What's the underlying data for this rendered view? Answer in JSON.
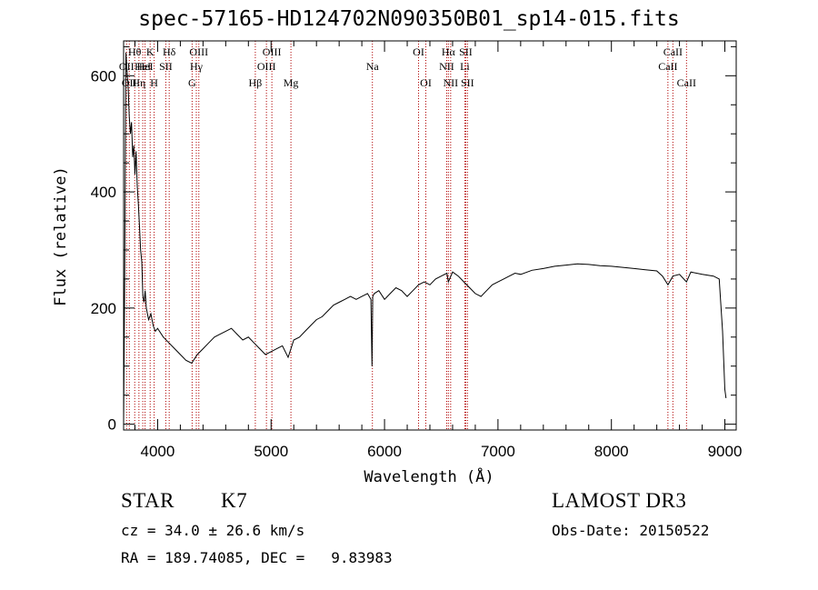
{
  "title": "spec-57165-HD124702N090350B01_sp14-015.fits",
  "chart_data": {
    "type": "line",
    "xlabel": "Wavelength (Å)",
    "ylabel": "Flux (relative)",
    "xlim": [
      3700,
      9100
    ],
    "ylim": [
      -10,
      660
    ],
    "x_ticks": [
      4000,
      5000,
      6000,
      7000,
      8000,
      9000
    ],
    "y_ticks": [
      0,
      200,
      400,
      600
    ],
    "grid": false,
    "series": [
      {
        "line_color": "#000000",
        "x": [
          3700,
          3710,
          3720,
          3730,
          3740,
          3750,
          3760,
          3770,
          3780,
          3790,
          3800,
          3810,
          3820,
          3830,
          3840,
          3850,
          3860,
          3870,
          3880,
          3890,
          3900,
          3920,
          3940,
          3960,
          3980,
          4000,
          4050,
          4100,
          4150,
          4200,
          4250,
          4300,
          4350,
          4400,
          4450,
          4500,
          4550,
          4600,
          4650,
          4700,
          4750,
          4800,
          4850,
          4900,
          4950,
          5000,
          5050,
          5100,
          5150,
          5200,
          5250,
          5300,
          5350,
          5400,
          5450,
          5500,
          5550,
          5600,
          5650,
          5700,
          5750,
          5800,
          5850,
          5880,
          5890,
          5896,
          5910,
          5950,
          6000,
          6050,
          6100,
          6150,
          6200,
          6250,
          6300,
          6350,
          6400,
          6450,
          6500,
          6550,
          6563,
          6600,
          6650,
          6700,
          6750,
          6800,
          6850,
          6900,
          6950,
          7000,
          7050,
          7100,
          7150,
          7200,
          7300,
          7400,
          7500,
          7600,
          7700,
          7800,
          7900,
          8000,
          8100,
          8200,
          8300,
          8400,
          8450,
          8498,
          8542,
          8600,
          8662,
          8700,
          8800,
          8900,
          8950,
          8980,
          9000,
          9010
        ],
        "values": [
          0,
          260,
          640,
          610,
          580,
          530,
          500,
          520,
          460,
          480,
          430,
          470,
          410,
          380,
          340,
          300,
          280,
          220,
          210,
          230,
          200,
          180,
          190,
          170,
          160,
          165,
          150,
          140,
          130,
          120,
          110,
          105,
          120,
          130,
          140,
          150,
          155,
          160,
          165,
          155,
          145,
          150,
          140,
          130,
          120,
          125,
          130,
          135,
          115,
          145,
          150,
          160,
          170,
          180,
          185,
          195,
          205,
          210,
          215,
          220,
          215,
          220,
          225,
          215,
          100,
          220,
          225,
          230,
          215,
          225,
          235,
          230,
          220,
          230,
          240,
          245,
          240,
          250,
          255,
          260,
          245,
          262,
          255,
          245,
          235,
          225,
          220,
          230,
          240,
          245,
          250,
          255,
          260,
          258,
          265,
          268,
          272,
          274,
          276,
          275,
          273,
          272,
          270,
          268,
          266,
          264,
          255,
          240,
          255,
          258,
          245,
          262,
          258,
          255,
          250,
          160,
          60,
          45
        ]
      }
    ],
    "lines": [
      {
        "x": 3726,
        "label": "OII",
        "row": 2
      },
      {
        "x": 3750,
        "label": "OII",
        "row": 3
      },
      {
        "x": 3798,
        "label": "Hθ",
        "row": 1
      },
      {
        "x": 3835,
        "label": "Hη",
        "row": 3
      },
      {
        "x": 3869,
        "label": "HeI",
        "row": 2
      },
      {
        "x": 3889,
        "label": "HeI",
        "row": 2
      },
      {
        "x": 3934,
        "label": "K",
        "row": 1
      },
      {
        "x": 3969,
        "label": "H",
        "row": 3
      },
      {
        "x": 4072,
        "label": "SII",
        "row": 2
      },
      {
        "x": 4102,
        "label": "Hδ",
        "row": 1
      },
      {
        "x": 4304,
        "label": "G",
        "row": 3
      },
      {
        "x": 4341,
        "label": "Hγ",
        "row": 2
      },
      {
        "x": 4363,
        "label": "OIII",
        "row": 1
      },
      {
        "x": 4861,
        "label": "Hβ",
        "row": 3
      },
      {
        "x": 4959,
        "label": "OIII",
        "row": 2
      },
      {
        "x": 5007,
        "label": "OIII",
        "row": 1
      },
      {
        "x": 5175,
        "label": "Mg",
        "row": 3
      },
      {
        "x": 5893,
        "label": "Na",
        "row": 2
      },
      {
        "x": 6300,
        "label": "OI",
        "row": 1
      },
      {
        "x": 6364,
        "label": "OI",
        "row": 3
      },
      {
        "x": 6548,
        "label": "NII",
        "row": 2
      },
      {
        "x": 6563,
        "label": "Hα",
        "row": 1
      },
      {
        "x": 6583,
        "label": "NII",
        "row": 3
      },
      {
        "x": 6708,
        "label": "Li",
        "row": 2
      },
      {
        "x": 6716,
        "label": "SII",
        "row": 1
      },
      {
        "x": 6731,
        "label": "SII",
        "row": 3
      },
      {
        "x": 8498,
        "label": "CaII",
        "row": 2
      },
      {
        "x": 8542,
        "label": "CaII",
        "row": 1
      },
      {
        "x": 8662,
        "label": "CaII",
        "row": 3
      }
    ]
  },
  "info": {
    "class_label": "STAR",
    "subclass": "K7",
    "survey": "LAMOST DR3",
    "cz": "cz = 34.0 ± 26.6 km/s",
    "obs_date": "Obs-Date: 20150522",
    "coords": "RA = 189.74085, DEC =   9.83983"
  }
}
